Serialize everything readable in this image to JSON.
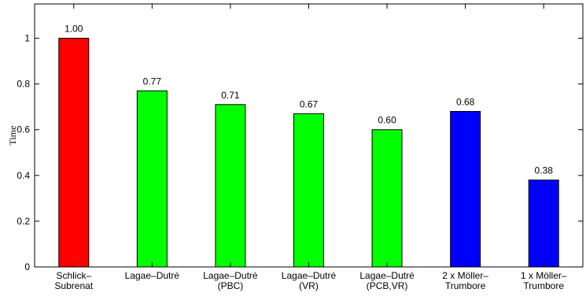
{
  "chart_data": {
    "type": "bar",
    "ylabel": "Time",
    "xlabel": "",
    "ylim": [
      0,
      1.15
    ],
    "yticks": [
      0,
      0.2,
      0.4,
      0.6,
      0.8,
      1
    ],
    "ytick_labels": [
      "0",
      "0.2",
      "0.4",
      "0.6",
      "0.8",
      "1"
    ],
    "grid": false,
    "categories": [
      [
        "Schlick–",
        "Subrenat"
      ],
      [
        "Lagae–Dutré"
      ],
      [
        "Lagae–Dutré",
        "(PBC)"
      ],
      [
        "Lagae–Dutré",
        "(VR)"
      ],
      [
        "Lagae–Dutré",
        "(PCB,VR)"
      ],
      [
        "2 x Möller–",
        "Trumbore"
      ],
      [
        "1 x Möller–",
        "Trumbore"
      ]
    ],
    "values": [
      1.0,
      0.77,
      0.71,
      0.67,
      0.6,
      0.68,
      0.38
    ],
    "value_labels": [
      "1.00",
      "0.77",
      "0.71",
      "0.67",
      "0.60",
      "0.68",
      "0.38"
    ],
    "colors": [
      "#ff0000",
      "#00ff00",
      "#00ff00",
      "#00ff00",
      "#00ff00",
      "#0000ff",
      "#0000ff"
    ]
  }
}
